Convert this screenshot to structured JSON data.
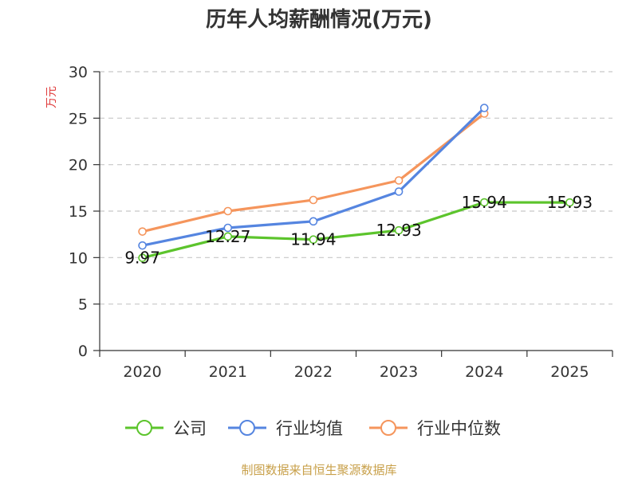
{
  "chart_data": {
    "type": "line",
    "title": "历年人均薪酬情况(万元)",
    "ylabel": "万元",
    "xlabel": "",
    "ylim": [
      0,
      30
    ],
    "yticks": [
      0,
      5,
      10,
      15,
      20,
      25,
      30
    ],
    "categories": [
      "2020",
      "2021",
      "2022",
      "2023",
      "2024",
      "2025"
    ],
    "grid": true,
    "legend_position": "bottom",
    "series": [
      {
        "name": "公司",
        "color": "#5cc42c",
        "values": [
          9.97,
          12.27,
          11.94,
          12.93,
          15.94,
          15.93
        ],
        "labels": [
          "9.97",
          "12.27",
          "11.94",
          "12.93",
          "15.94",
          "15.93"
        ]
      },
      {
        "name": "行业均值",
        "color": "#5585e0",
        "values": [
          11.3,
          13.2,
          13.9,
          17.1,
          26.1,
          null
        ]
      },
      {
        "name": "行业中位数",
        "color": "#f5955c",
        "values": [
          12.8,
          15.0,
          16.2,
          18.3,
          25.5,
          null
        ]
      }
    ]
  },
  "source": "制图数据来自恒生聚源数据库"
}
